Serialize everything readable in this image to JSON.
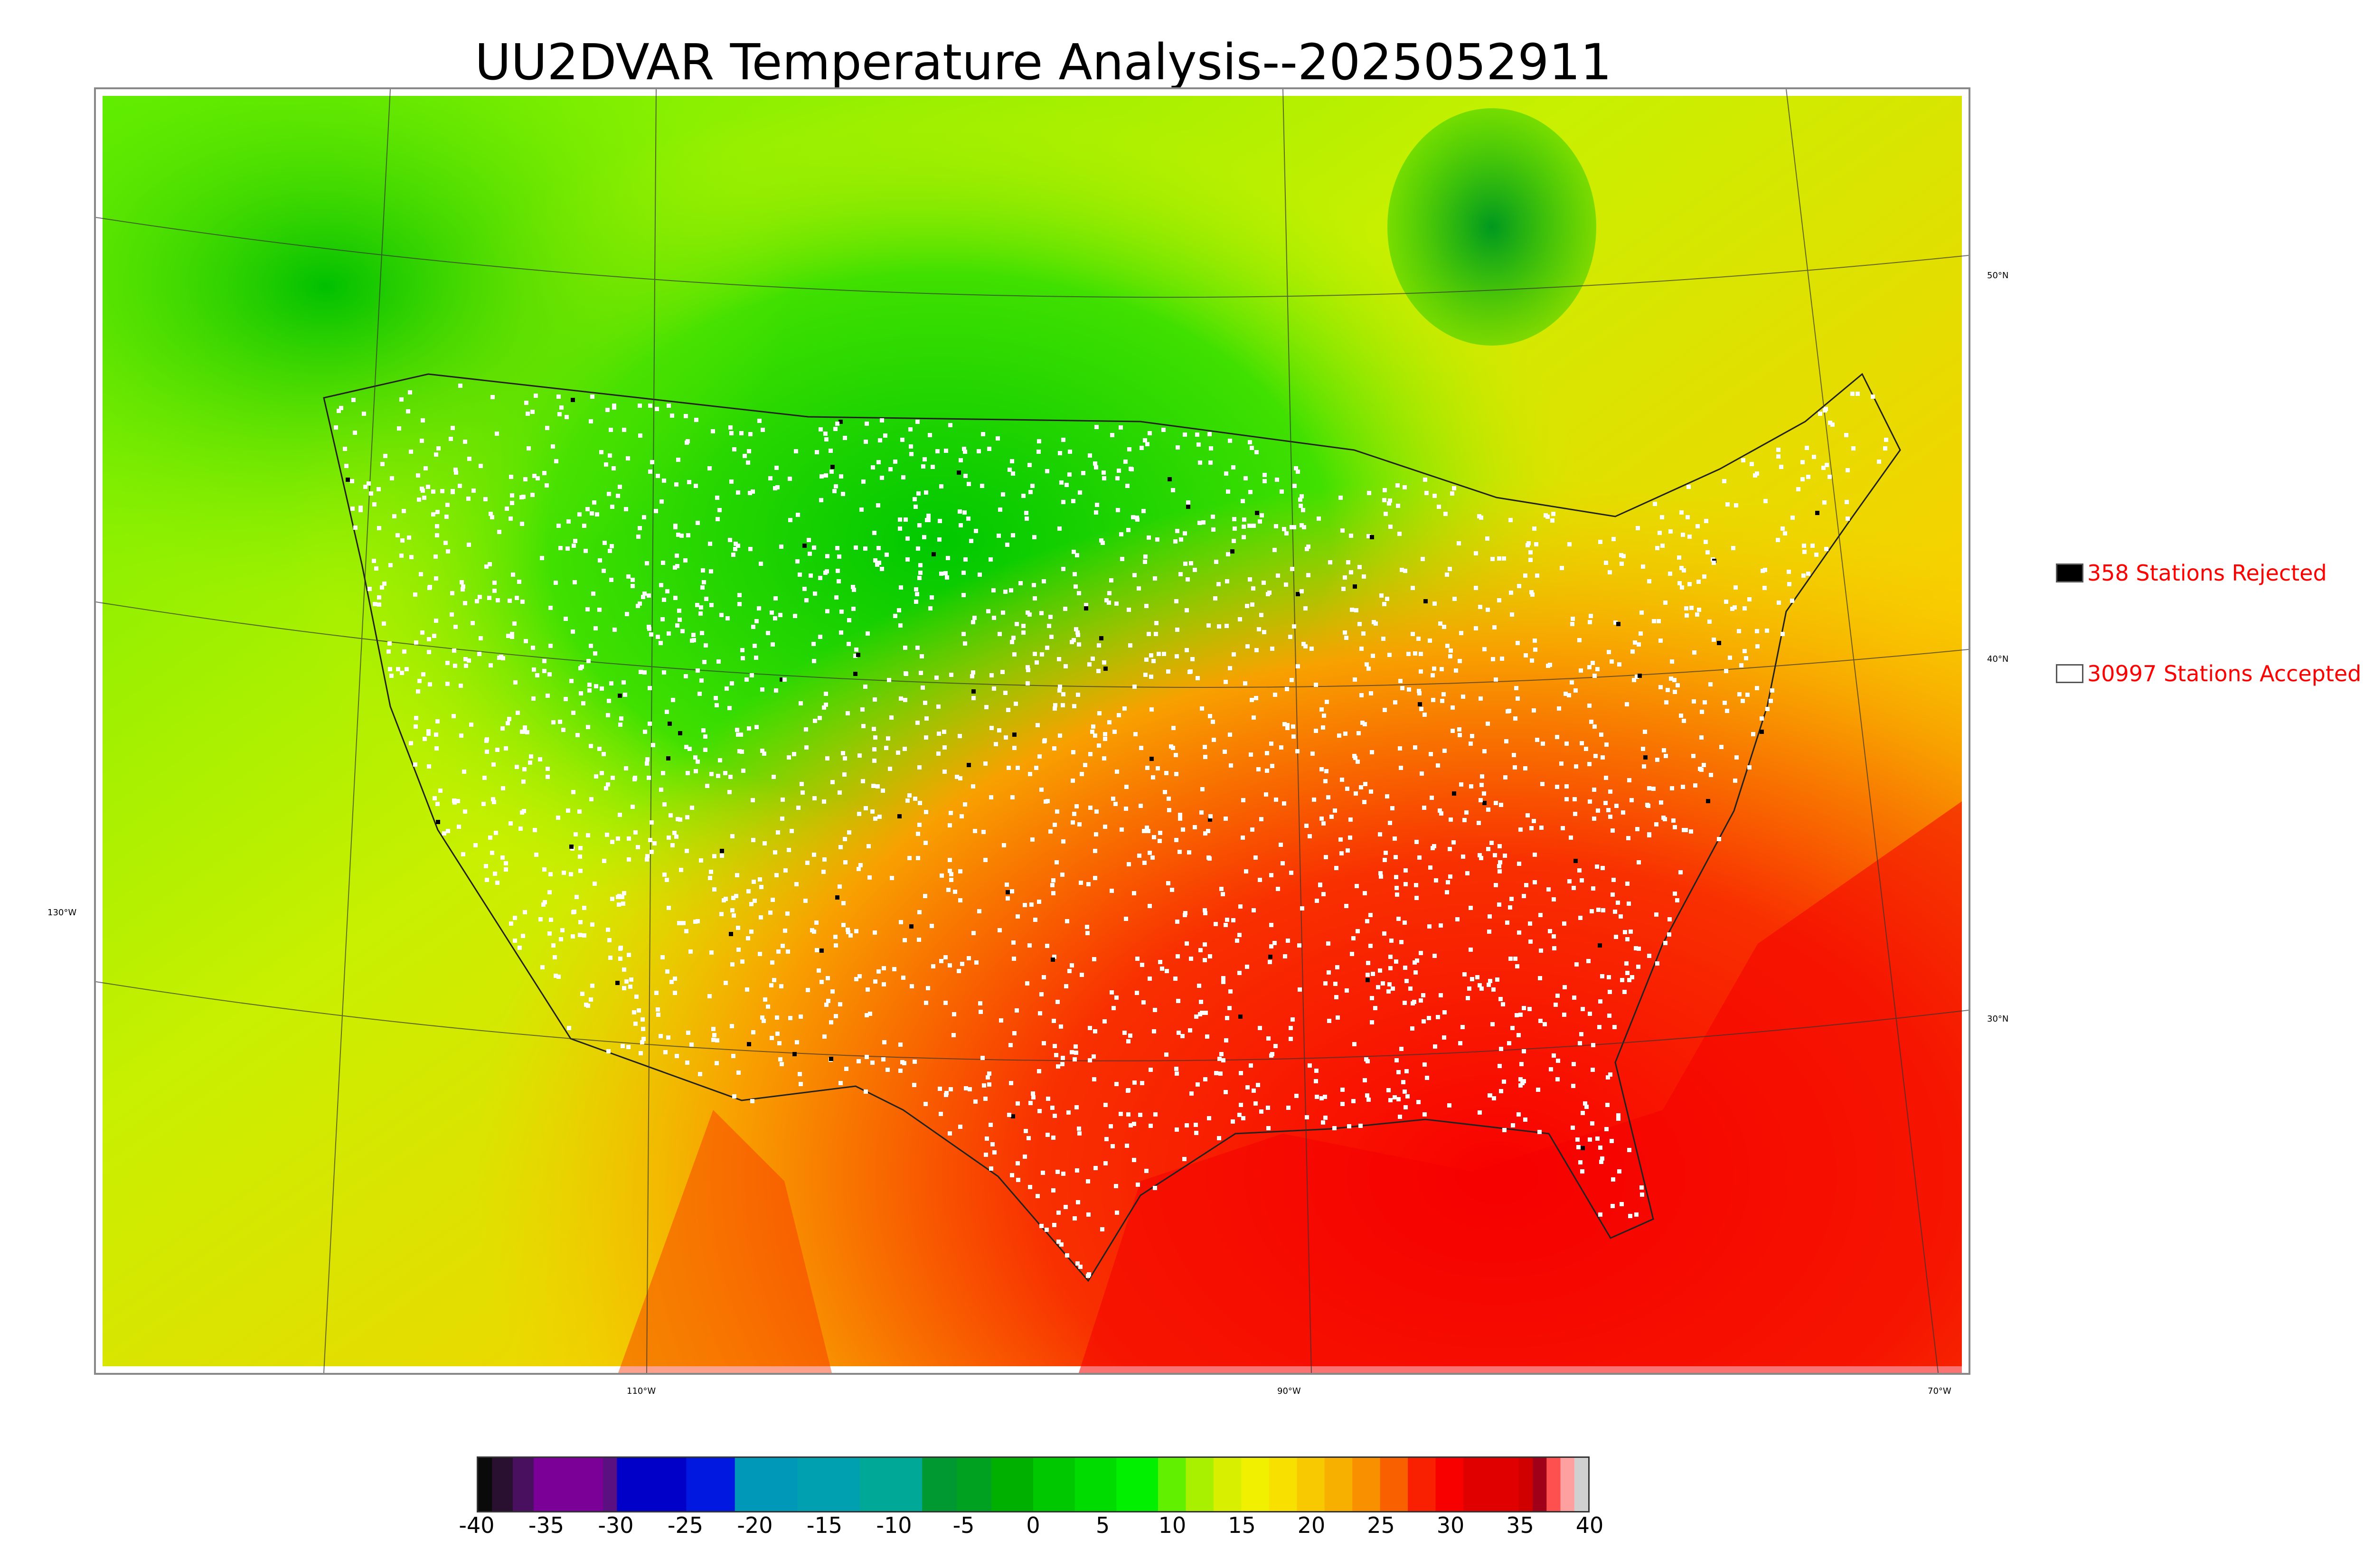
{
  "title": "UU2DVAR Temperature Analysis--2025052911",
  "legend": {
    "rejected": {
      "label": "358 Stations Rejected",
      "swatch_color": "#000000"
    },
    "accepted": {
      "label": "30997 Stations Accepted",
      "swatch_color": "#ffffff"
    }
  },
  "graticule": {
    "lat_labels": [
      "50°N",
      "40°N",
      "30°N"
    ],
    "lon_labels": [
      "130°W",
      "110°W",
      "90°W",
      "70°W"
    ]
  },
  "colorbar": {
    "min": -40,
    "max": 40,
    "ticks": [
      "-40",
      "-35",
      "-30",
      "-25",
      "-20",
      "-15",
      "-10",
      "-5",
      "0",
      "5",
      "10",
      "15",
      "20",
      "25",
      "30",
      "35",
      "40"
    ],
    "colors": [
      {
        "from": -40,
        "to": -39,
        "color": "#0a0a0a"
      },
      {
        "from": -39,
        "to": -37.5,
        "color": "#2a1030"
      },
      {
        "from": -37.5,
        "to": -36,
        "color": "#4a1060"
      },
      {
        "from": -36,
        "to": -31,
        "color": "#7a0098"
      },
      {
        "from": -31,
        "to": -30,
        "color": "#5a1080"
      },
      {
        "from": -30,
        "to": -25,
        "color": "#0000c8"
      },
      {
        "from": -25,
        "to": -21.5,
        "color": "#0018e0"
      },
      {
        "from": -21.5,
        "to": -17,
        "color": "#0098b8"
      },
      {
        "from": -17,
        "to": -12.5,
        "color": "#00a0b0"
      },
      {
        "from": -12.5,
        "to": -8,
        "color": "#00a898"
      },
      {
        "from": -8,
        "to": -5.5,
        "color": "#009830"
      },
      {
        "from": -5.5,
        "to": -3,
        "color": "#00a020"
      },
      {
        "from": -3,
        "to": 0,
        "color": "#00b000"
      },
      {
        "from": 0,
        "to": 3,
        "color": "#00c800"
      },
      {
        "from": 3,
        "to": 6,
        "color": "#00dc00"
      },
      {
        "from": 6,
        "to": 9,
        "color": "#00f000"
      },
      {
        "from": 9,
        "to": 11,
        "color": "#60f000"
      },
      {
        "from": 11,
        "to": 13,
        "color": "#a8f000"
      },
      {
        "from": 13,
        "to": 15,
        "color": "#d8f000"
      },
      {
        "from": 15,
        "to": 17,
        "color": "#f0f000"
      },
      {
        "from": 17,
        "to": 19,
        "color": "#f8e000"
      },
      {
        "from": 19,
        "to": 21,
        "color": "#f8c800"
      },
      {
        "from": 21,
        "to": 23,
        "color": "#f8b000"
      },
      {
        "from": 23,
        "to": 25,
        "color": "#f89000"
      },
      {
        "from": 25,
        "to": 27,
        "color": "#f86000"
      },
      {
        "from": 27,
        "to": 29,
        "color": "#f82000"
      },
      {
        "from": 29,
        "to": 31,
        "color": "#f80000"
      },
      {
        "from": 31,
        "to": 35,
        "color": "#e00000"
      },
      {
        "from": 35,
        "to": 36,
        "color": "#d00000"
      },
      {
        "from": 36,
        "to": 37,
        "color": "#a00018"
      },
      {
        "from": 37,
        "to": 38,
        "color": "#ff5050"
      },
      {
        "from": 38,
        "to": 39,
        "color": "#ffa0a0"
      },
      {
        "from": 39,
        "to": 40,
        "color": "#d0d0d0"
      }
    ]
  },
  "colors": {
    "rejected_station": "#000000",
    "accepted_station": "#ffffff",
    "legend_text": "#ff0000"
  }
}
